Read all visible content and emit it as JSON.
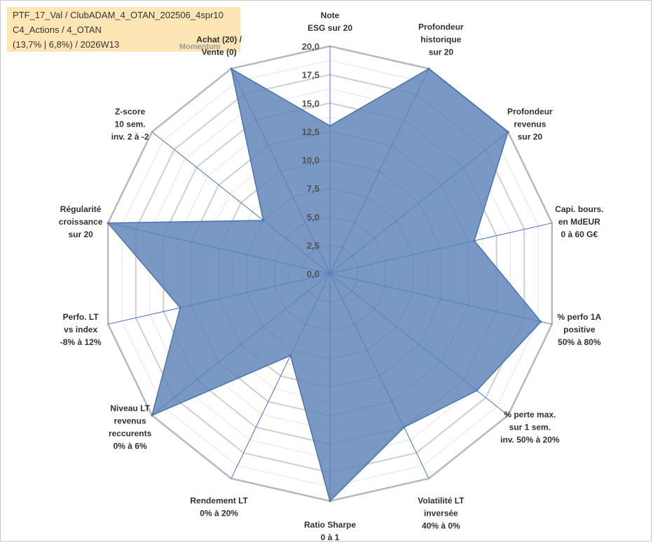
{
  "header": {
    "line1": "PTF_17_Val / ClubADAM_4_OTAN_202506_4spr10",
    "line2": "C4_Actions / 4_OTAN",
    "line3": "(13,7% | 6,8%) / 2026W13"
  },
  "momentum_label": "Momentum",
  "chart_data": {
    "type": "radar",
    "title": "",
    "rmin": 0,
    "rmax": 20,
    "tick_step": 2.5,
    "tick_labels": [
      "0,0",
      "2,5",
      "5,0",
      "7,5",
      "10,0",
      "12,5",
      "15,0",
      "17,5",
      "20,0"
    ],
    "series": [
      {
        "name": "PTF_17_Val",
        "color": "#5b82b7",
        "values": [
          13,
          20,
          20,
          13,
          19,
          16.5,
          15,
          20,
          8,
          20,
          13.5,
          20,
          7.5,
          20
        ]
      }
    ],
    "axes": [
      {
        "key": "esg",
        "lines": [
          "Note",
          "ESG sur 20"
        ]
      },
      {
        "key": "prof-hist",
        "lines": [
          "Profondeur",
          "historique",
          "sur 20"
        ]
      },
      {
        "key": "prof-rev",
        "lines": [
          "Profondeur",
          "revenus",
          "sur 20"
        ]
      },
      {
        "key": "capi",
        "lines": [
          "Capi. bours.",
          "en MdEUR",
          "0 à 60 G€"
        ]
      },
      {
        "key": "perf-1a",
        "lines": [
          "% perfo 1A",
          "positive",
          "50% à 80%"
        ]
      },
      {
        "key": "perte-max",
        "lines": [
          "% perte max.",
          "sur 1 sem.",
          "inv. 50% à 20%"
        ]
      },
      {
        "key": "volatilite",
        "lines": [
          "Volatilité LT",
          "inversée",
          "40% à 0%"
        ]
      },
      {
        "key": "sharpe",
        "lines": [
          "Ratio Sharpe",
          "0 à 1"
        ]
      },
      {
        "key": "rendement",
        "lines": [
          "Rendement LT",
          "0% à 20%"
        ]
      },
      {
        "key": "revenus-rec",
        "lines": [
          "Niveau LT",
          "revenus",
          "reccurents",
          "0% à 6%"
        ]
      },
      {
        "key": "perf-lt",
        "lines": [
          "Perfo. LT",
          "vs index",
          "-8% à 12%"
        ]
      },
      {
        "key": "regularite",
        "lines": [
          "Régularité",
          "croissance",
          "sur 20"
        ]
      },
      {
        "key": "zscore",
        "lines": [
          "Z-score",
          "10 sem.",
          "inv. 2 à -2"
        ]
      },
      {
        "key": "achat",
        "lines": [
          "Achat (20) /",
          "Vente (0)"
        ]
      }
    ],
    "grid": true,
    "legend": "none"
  }
}
